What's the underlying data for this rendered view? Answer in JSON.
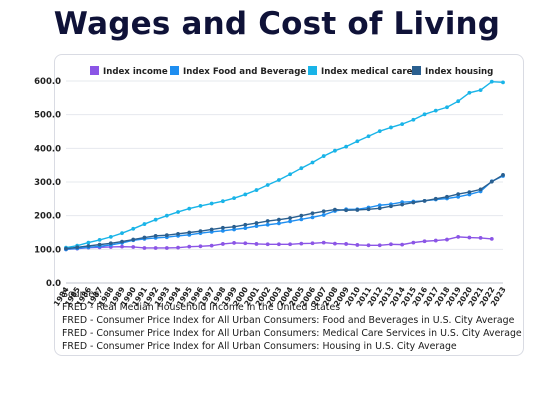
{
  "title": "Wages and Cost of Living",
  "chart_data": {
    "type": "line",
    "title": "Wages and Cost of Living",
    "xlabel": "",
    "ylabel": "",
    "ylim": [
      0,
      650
    ],
    "yticks": [
      "0.0",
      "100.0",
      "200.0",
      "300.0",
      "400.0",
      "500.0",
      "600.0"
    ],
    "grid": "horizontal",
    "legend": "top",
    "x": [
      1984,
      1985,
      1986,
      1987,
      1988,
      1989,
      1990,
      1991,
      1992,
      1993,
      1994,
      1995,
      1996,
      1997,
      1998,
      1999,
      2000,
      2001,
      2002,
      2003,
      2004,
      2005,
      2006,
      2007,
      2008,
      2009,
      2010,
      2011,
      2012,
      2013,
      2014,
      2015,
      2016,
      2017,
      2018,
      2019,
      2020,
      2021,
      2022,
      2023
    ],
    "series": [
      {
        "name": "Index income",
        "color": "#8b55e6",
        "values": [
          100,
          102,
          105,
          106,
          107,
          108,
          107,
          104,
          104,
          104,
          105,
          108,
          109,
          111,
          116,
          119,
          118,
          116,
          115,
          115,
          115,
          117,
          118,
          120,
          117,
          116,
          113,
          112,
          112,
          115,
          114,
          120,
          124,
          126,
          129,
          137,
          135,
          134,
          131,
          null
        ]
      },
      {
        "name": "Index Food and Beverage",
        "color": "#1f8ef0",
        "values": [
          100,
          103,
          106,
          109,
          113,
          119,
          127,
          131,
          134,
          136,
          140,
          143,
          148,
          152,
          155,
          159,
          163,
          169,
          173,
          177,
          183,
          189,
          195,
          202,
          214,
          219,
          219,
          224,
          231,
          234,
          240,
          242,
          244,
          248,
          251,
          256,
          263,
          272,
          302,
          318
        ]
      },
      {
        "name": "Index medical care",
        "color": "#19b4e8",
        "values": [
          105,
          111,
          120,
          128,
          137,
          148,
          161,
          175,
          188,
          200,
          211,
          221,
          229,
          236,
          243,
          252,
          263,
          276,
          291,
          306,
          323,
          341,
          358,
          377,
          393,
          405,
          421,
          436,
          451,
          462,
          472,
          485,
          501,
          512,
          522,
          540,
          565,
          573,
          598,
          596
        ]
      },
      {
        "name": "Index housing",
        "color": "#2a5f8f",
        "values": [
          102,
          106,
          110,
          114,
          118,
          123,
          129,
          135,
          140,
          142,
          146,
          150,
          154,
          159,
          164,
          167,
          173,
          178,
          184,
          188,
          193,
          200,
          207,
          213,
          218,
          216,
          217,
          219,
          222,
          228,
          233,
          239,
          244,
          250,
          256,
          264,
          270,
          278,
          301,
          321
        ]
      }
    ]
  },
  "sources": [
    "Sources:",
    "FRED - Real Median Household Income in the United States",
    "FRED - Consumer Price Index for All Urban Consumers: Food and Beverages in U.S. City Average",
    "FRED - Consumer Price Index for All Urban Consumers: Medical Care Services in U.S. City Average",
    "FRED - Consumer Price Index for All Urban Consumers: Housing in U.S. City Average"
  ]
}
